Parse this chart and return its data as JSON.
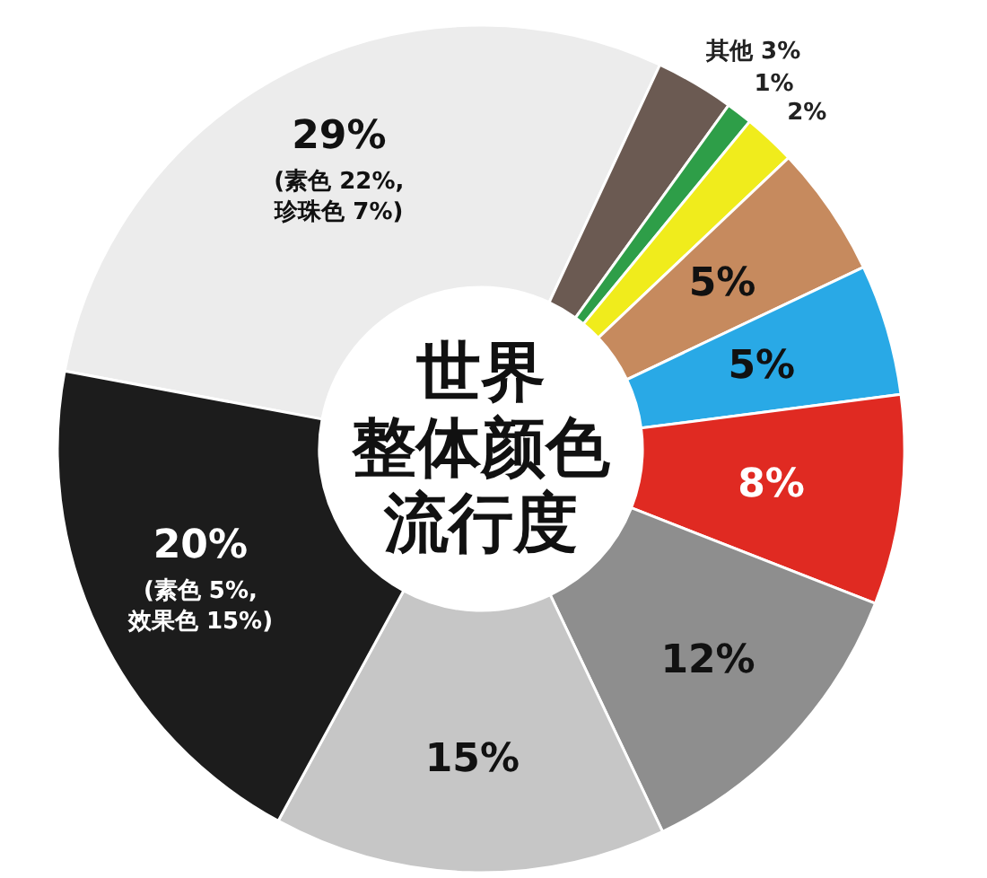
{
  "chart_data": {
    "type": "donut",
    "title": "世界整体颜色流行度",
    "categories": [
      null,
      "其他",
      null,
      null,
      null,
      null,
      null,
      null,
      null,
      null
    ],
    "values": [
      29,
      3,
      1,
      2,
      5,
      5,
      8,
      12,
      15,
      20
    ],
    "colors": [
      "#ececec",
      "#6b5a52",
      "#2e9e48",
      "#f0ec1c",
      "#c68a5e",
      "#29a9e6",
      "#e02a22",
      "#8e8e8e",
      "#c6c6c6",
      "#1c1c1c"
    ],
    "value_labels": [
      "29%",
      "3%",
      "1%",
      "2%",
      "5%",
      "5%",
      "8%",
      "12%",
      "15%",
      "20%"
    ],
    "annotations": [
      "(素色 22%, 珍珠色 7%)",
      "(素色 5%, 效果色 15%)"
    ]
  }
}
